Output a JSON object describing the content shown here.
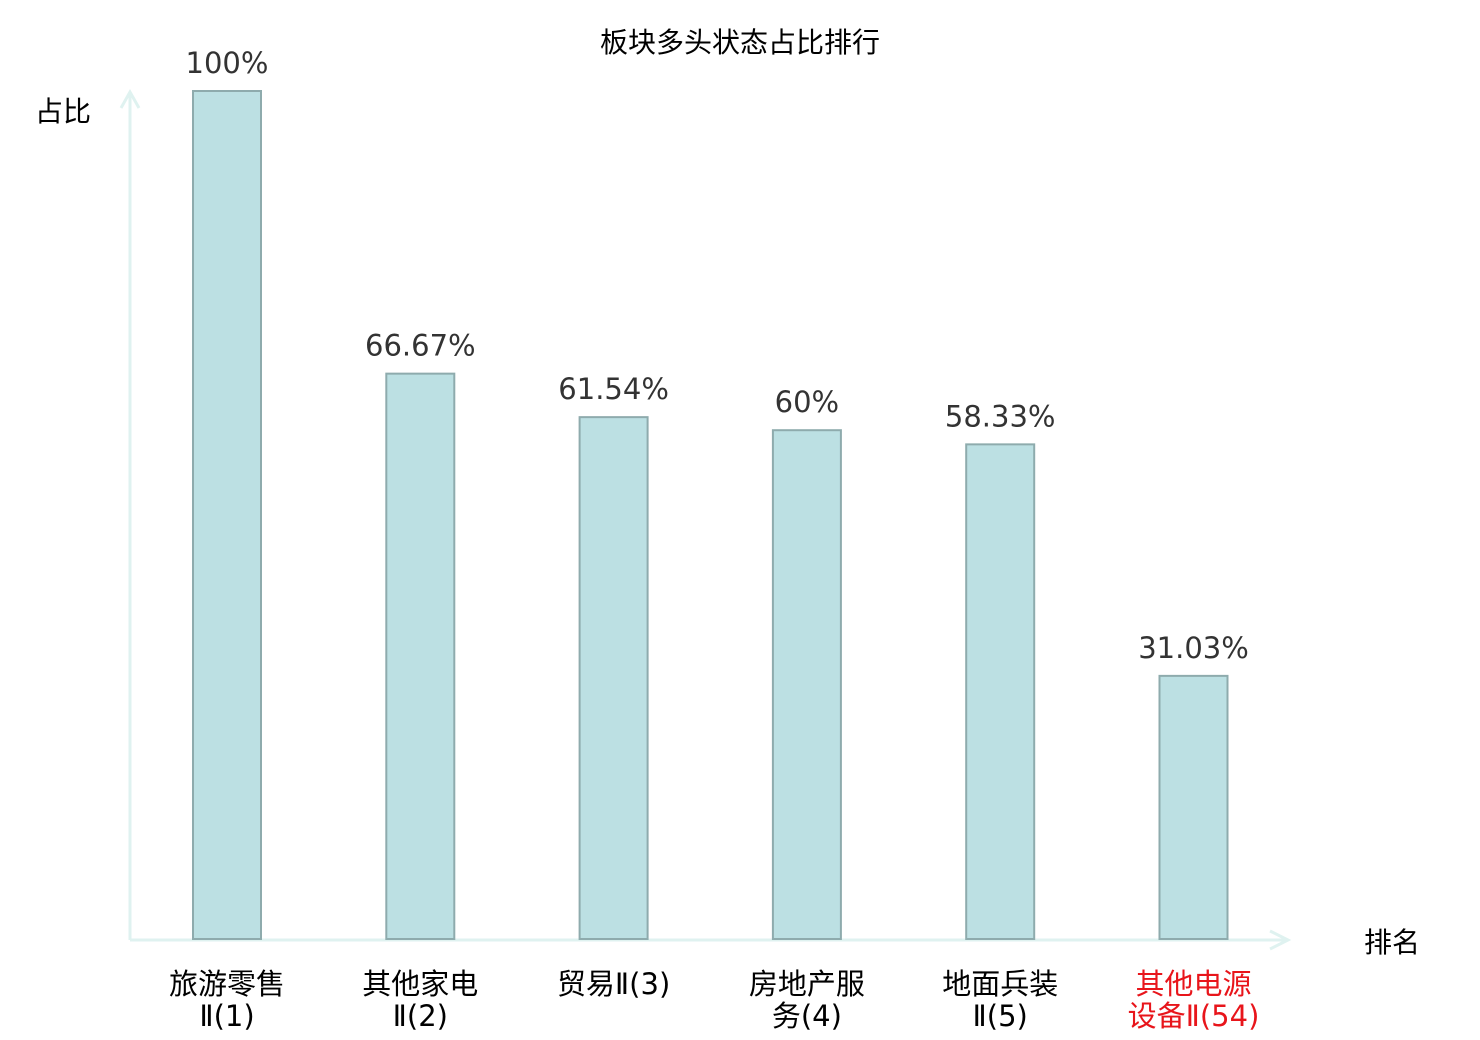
{
  "chart_data": {
    "type": "bar",
    "title": "板块多头状态占比排行",
    "ylabel": "占比",
    "xlabel": "排名",
    "categories": [
      "旅游零售Ⅱ(1)",
      "其他家电Ⅱ(2)",
      "贸易Ⅱ(3)",
      "房地产服务(4)",
      "地面兵装Ⅱ(5)",
      "其他电源设备Ⅱ(54)"
    ],
    "values": [
      100,
      66.67,
      61.54,
      60,
      58.33,
      31.03
    ],
    "data_labels": [
      "100%",
      "66.67%",
      "61.54%",
      "60%",
      "58.33%",
      "31.03%"
    ],
    "highlighted_category_index": 5,
    "ylim": [
      0,
      100
    ],
    "grid": false,
    "legend": "none",
    "colors": {
      "bar_fill": "#bce0e3",
      "bar_stroke": "#8eabad",
      "axis": "#dff2f0",
      "label": "#000000",
      "highlight_label": "#e8151b",
      "value_label": "#333333"
    }
  }
}
